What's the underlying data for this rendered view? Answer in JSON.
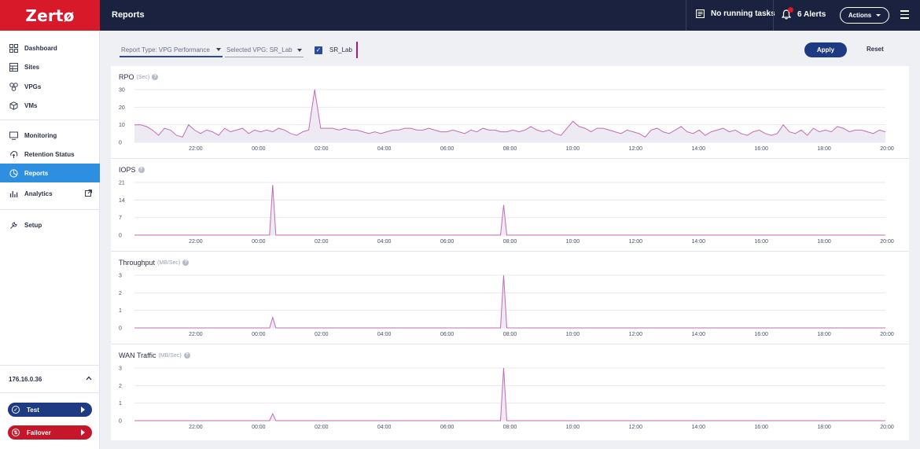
{
  "header": {
    "logo": "Zertø",
    "title": "Reports",
    "tasks_label": "No running tasks",
    "alerts_label": "6 Alerts",
    "actions_label": "Actions"
  },
  "sidebar": {
    "items": [
      {
        "label": "Dashboard",
        "icon": "dashboard-icon"
      },
      {
        "label": "Sites",
        "icon": "sites-icon"
      },
      {
        "label": "VPGs",
        "icon": "vpgs-icon"
      },
      {
        "label": "VMs",
        "icon": "vms-icon"
      },
      {
        "label": "Monitoring",
        "icon": "monitor-icon"
      },
      {
        "label": "Retention Status",
        "icon": "retention-icon"
      },
      {
        "label": "Reports",
        "icon": "reports-icon",
        "active": true
      },
      {
        "label": "Analytics",
        "icon": "analytics-icon"
      },
      {
        "label": "Setup",
        "icon": "setup-icon"
      }
    ],
    "ip": "176.16.0.36",
    "test_label": "Test",
    "failover_label": "Failover"
  },
  "filters": {
    "report_type": "Report Type: VPG Performance",
    "selected_vpg": "Selected VPG: SR_Lab",
    "vpg_checkbox_label": "SR_Lab",
    "vpg_checked": true,
    "vpg_color": "#b4177e",
    "apply_label": "Apply",
    "reset_label": "Reset"
  },
  "colors": {
    "accent": "#1d3a83",
    "brand": "#d7192a",
    "series": "#c46ab2"
  },
  "chart_data": [
    {
      "type": "area",
      "title": "RPO",
      "unit": "(Sec)",
      "ylim": [
        0,
        30
      ],
      "yticks": [
        0,
        10,
        20,
        30
      ],
      "x_ticks": [
        "22:00",
        "00:00",
        "02:00",
        "04:00",
        "06:00",
        "08:00",
        "10:00",
        "12:00",
        "14:00",
        "16:00",
        "18:00",
        "20:00"
      ],
      "series": [
        {
          "values": [
            10,
            10,
            9,
            7,
            4,
            8,
            7,
            4,
            3,
            10,
            7,
            5,
            7,
            6,
            4,
            8,
            6,
            7,
            8,
            5,
            7,
            6,
            7,
            6,
            8,
            7,
            5,
            4,
            6,
            7,
            30,
            8,
            8,
            8,
            7,
            8,
            7,
            7,
            6,
            5,
            6,
            5,
            6,
            7,
            7,
            8,
            8,
            7,
            7,
            8,
            7,
            6,
            6,
            7,
            6,
            5,
            7,
            6,
            8,
            7,
            7,
            6,
            6,
            7,
            6,
            7,
            9,
            7,
            6,
            7,
            5,
            4,
            8,
            12,
            9,
            8,
            6,
            8,
            8,
            7,
            6,
            5,
            7,
            6,
            5,
            3,
            7,
            8,
            6,
            5,
            7,
            9,
            6,
            5,
            7,
            4,
            6,
            7,
            8,
            6,
            7,
            5,
            4,
            6,
            7,
            5,
            4,
            5,
            10,
            6,
            5,
            7,
            4,
            8,
            6,
            7,
            6,
            9,
            8,
            6,
            7,
            7,
            6,
            5,
            7,
            6
          ]
        }
      ],
      "grid": true
    },
    {
      "type": "area",
      "title": "IOPS",
      "unit": "",
      "ylim": [
        0,
        21
      ],
      "yticks": [
        0,
        7,
        14,
        21
      ],
      "x_ticks": [
        "22:00",
        "00:00",
        "02:00",
        "04:00",
        "06:00",
        "08:00",
        "10:00",
        "12:00",
        "14:00",
        "16:00",
        "18:00",
        "20:00"
      ],
      "series": [
        {
          "spikes": [
            {
              "x": 3.45,
              "value": 20
            },
            {
              "x": 10.8,
              "value": 12
            }
          ]
        }
      ],
      "grid": true
    },
    {
      "type": "area",
      "title": "Throughput",
      "unit": "(MB/Sec)",
      "ylim": [
        0,
        3
      ],
      "yticks": [
        0,
        1,
        2,
        3
      ],
      "x_ticks": [
        "22:00",
        "00:00",
        "02:00",
        "04:00",
        "06:00",
        "08:00",
        "10:00",
        "12:00",
        "14:00",
        "16:00",
        "18:00",
        "20:00"
      ],
      "series": [
        {
          "spikes": [
            {
              "x": 3.45,
              "value": 0.6
            },
            {
              "x": 10.8,
              "value": 3
            }
          ]
        }
      ],
      "grid": true
    },
    {
      "type": "area",
      "title": "WAN Traffic",
      "unit": "(MB/Sec)",
      "ylim": [
        0,
        3
      ],
      "yticks": [
        0,
        1,
        2,
        3
      ],
      "x_ticks": [
        "22:00",
        "00:00",
        "02:00",
        "04:00",
        "06:00",
        "08:00",
        "10:00",
        "12:00",
        "14:00",
        "16:00",
        "18:00",
        "20:00"
      ],
      "series": [
        {
          "spikes": [
            {
              "x": 3.45,
              "value": 0.4
            },
            {
              "x": 10.8,
              "value": 3
            }
          ]
        }
      ],
      "grid": true
    }
  ]
}
